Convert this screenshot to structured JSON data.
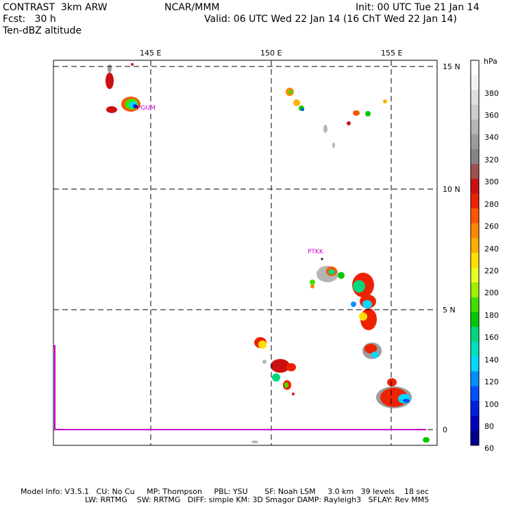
{
  "header": {
    "line1_left": "CONTRAST  3km ARW",
    "line1_center": "NCAR/MMM",
    "line1_right": "Init: 00 UTC Tue 21 Jan 14",
    "line2_left": "Fcst:   30 h",
    "line2_right": "Valid: 06 UTC Wed 22 Jan 14 (16 ChT Wed 22 Jan 14)",
    "line3_left": "Ten-dBZ altitude"
  },
  "map": {
    "lon_labels": [
      "145 E",
      "150 E",
      "155 E"
    ],
    "lat_labels": [
      "15 N",
      "10 N",
      "5 N",
      "0"
    ],
    "stations": [
      "PGUM",
      "PTKK"
    ],
    "station_color": "#cc00cc"
  },
  "colorbar": {
    "unit": "hPa",
    "labels": [
      "380",
      "360",
      "340",
      "320",
      "300",
      "280",
      "260",
      "240",
      "220",
      "200",
      "180",
      "160",
      "140",
      "120",
      "100",
      "80",
      "60"
    ],
    "colors": [
      "#ffffff",
      "#f2f2f2",
      "#e0e0e0",
      "#cccccc",
      "#b5b5b5",
      "#9c9c9c",
      "#858585",
      "#a05050",
      "#cc1010",
      "#ee2200",
      "#ff5500",
      "#ff8800",
      "#ffb000",
      "#ffe000",
      "#e8ff20",
      "#a0f000",
      "#40e000",
      "#00c800",
      "#00d880",
      "#00e0c0",
      "#00d8ff",
      "#0090ff",
      "#0050ff",
      "#0020e0",
      "#0000c0",
      "#000090"
    ]
  },
  "footer": {
    "line1": "Model Info: V3.5.1   CU: No Cu     MP: Thompson     PBL: YSU       SF: Noah LSM     3.0 km   39 levels    18 sec",
    "line2": "LW: RRTMG    SW: RRTMG   DIFF: simple KM: 3D Smagor DAMP: Rayleigh3   SFLAY: Rev MM5"
  }
}
